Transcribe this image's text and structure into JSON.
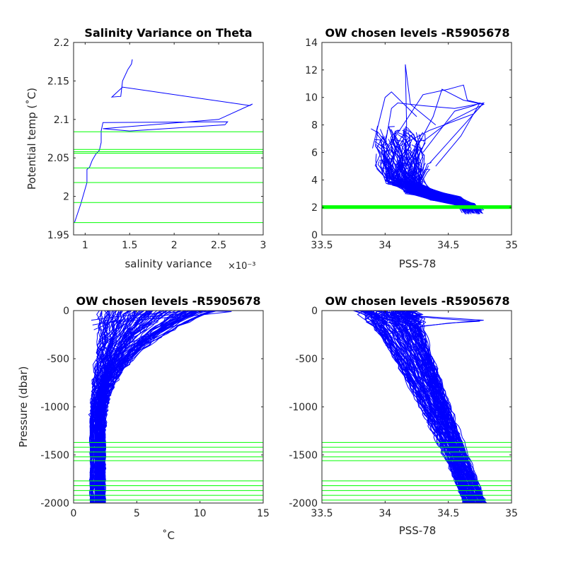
{
  "figure": {
    "colors": {
      "profile": "#0000ff",
      "level": "#00ff00",
      "axes": "#262626"
    }
  },
  "chart_data": [
    {
      "id": "p1",
      "type": "line",
      "title": "Salinity Variance on Theta",
      "xlabel": "salinity variance",
      "x_exponent_label": "×10⁻³",
      "ylabel": "Potential temp (˚C)",
      "xlim": [
        0.87,
        3.0
      ],
      "ylim": [
        1.95,
        2.2
      ],
      "xticks": [
        1,
        1.5,
        2,
        2.5,
        3
      ],
      "xtick_labels": [
        "1",
        "1.5",
        "2",
        "2.5",
        "3"
      ],
      "yticks": [
        1.95,
        2,
        2.05,
        2.1,
        2.15,
        2.2
      ],
      "ytick_labels": [
        "1.95",
        "2",
        "2.05",
        "2.1",
        "2.15",
        "2.2"
      ],
      "series": [
        {
          "x": [
            0.88,
            0.95,
            1.02,
            1.02,
            1.05,
            1.08,
            1.12,
            1.16,
            1.18,
            1.18,
            1.2,
            2.6,
            2.57,
            1.5,
            1.2,
            2.5,
            2.88,
            2.85,
            2.73,
            1.42,
            1.3,
            1.4,
            1.42,
            1.48,
            1.52,
            1.53
          ],
          "y": [
            1.966,
            1.99,
            2.018,
            2.035,
            2.038,
            2.047,
            2.055,
            2.06,
            2.07,
            2.085,
            2.096,
            2.097,
            2.093,
            2.085,
            2.088,
            2.1,
            2.12,
            2.118,
            2.12,
            2.142,
            2.129,
            2.13,
            2.15,
            2.165,
            2.172,
            2.178
          ]
        }
      ],
      "hlines": [
        1.966,
        1.992,
        2.018,
        2.037,
        2.056,
        2.058,
        2.061,
        2.084
      ]
    },
    {
      "id": "p2",
      "type": "line",
      "title": "OW chosen levels -R5905678",
      "xlabel": "PSS-78",
      "ylabel": "",
      "xlim": [
        33.5,
        35
      ],
      "ylim": [
        0,
        14
      ],
      "xticks": [
        33.5,
        34,
        34.5,
        35
      ],
      "xtick_labels": [
        "33.5",
        "34",
        "34.5",
        "35"
      ],
      "yticks": [
        0,
        2,
        4,
        6,
        8,
        10,
        12,
        14
      ],
      "ytick_labels": [
        "0",
        "2",
        "4",
        "6",
        "8",
        "10",
        "12",
        "14"
      ],
      "hlines": [
        1.97,
        2.0,
        2.02,
        2.04,
        2.06,
        2.08
      ]
    },
    {
      "id": "p3",
      "type": "line",
      "title": "OW chosen levels -R5905678",
      "xlabel": "˚C",
      "ylabel": "Pressure (dbar)",
      "xlim": [
        0,
        15
      ],
      "ylim": [
        -2000,
        0
      ],
      "xticks": [
        0,
        5,
        10,
        15
      ],
      "xtick_labels": [
        "0",
        "5",
        "10",
        "15"
      ],
      "yticks": [
        -2000,
        -1500,
        -1000,
        -500,
        0
      ],
      "ytick_labels": [
        "-2000",
        "-1500",
        "-1000",
        "-500",
        "0"
      ],
      "hlines": [
        -1370,
        -1420,
        -1470,
        -1520,
        -1560,
        -1770,
        -1820,
        -1870,
        -1920,
        -1970
      ]
    },
    {
      "id": "p4",
      "type": "line",
      "title": "OW chosen levels -R5905678",
      "xlabel": "PSS-78",
      "ylabel": "",
      "xlim": [
        33.5,
        35
      ],
      "ylim": [
        -2000,
        0
      ],
      "xticks": [
        33.5,
        34,
        34.5,
        35
      ],
      "xtick_labels": [
        "33.5",
        "34",
        "34.5",
        "35"
      ],
      "yticks": [
        -2000,
        -1500,
        -1000,
        -500,
        0
      ],
      "ytick_labels": [
        "-2000",
        "-1500",
        "-1000",
        "-500",
        "0"
      ],
      "hlines": [
        -1370,
        -1420,
        -1470,
        -1520,
        -1560,
        -1770,
        -1820,
        -1870,
        -1920,
        -1970
      ]
    }
  ]
}
